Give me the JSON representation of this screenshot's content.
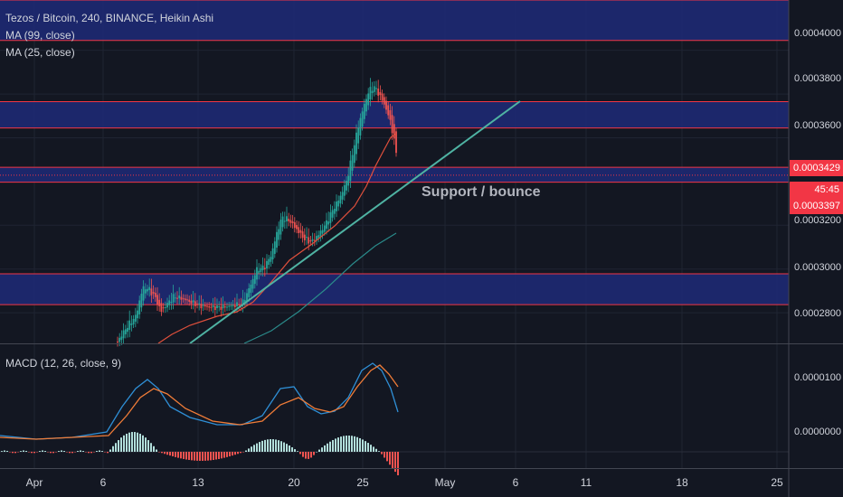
{
  "legend": {
    "symbol": "Tezos / Bitcoin, 240, BINANCE, Heikin Ashi",
    "ma99": "MA (99, close)",
    "ma25": "MA (25, close)",
    "macd": "MACD (12, 26, close, 9)"
  },
  "price_axis": [
    "0.0004000",
    "0.0003800",
    "0.0003600",
    "0.0003200",
    "0.0003000",
    "0.0002800"
  ],
  "macd_axis": [
    "0.0000100",
    "0.0000000"
  ],
  "time_axis": [
    "Apr",
    "6",
    "13",
    "20",
    "25",
    "May",
    "6",
    "11",
    "18",
    "25"
  ],
  "badges": {
    "last_price": "0.0003429",
    "countdown": "45:45",
    "level": "0.0003397"
  },
  "annotation": "Support / bounce",
  "colors": {
    "background": "#131722",
    "zone_fill": "#1e2a78",
    "zone_line": "#f23645",
    "candle_up": "#26a69a",
    "candle_down": "#ef5350",
    "ma25": "#e0503c",
    "ma99": "#2a8a8a",
    "trendline": "#4fb3a3",
    "macd_line": "#2f8fd6",
    "signal_line": "#f07c38"
  },
  "chart_data": {
    "type": "candlestick",
    "pair": "XTZ/BTC",
    "timeframe": "240",
    "exchange": "BINANCE",
    "candle_style": "Heikin Ashi",
    "ylim": [
      0.000266,
      0.000423
    ],
    "last_price": 0.0003429,
    "zones": [
      {
        "from": 0.0004045,
        "to": 0.000423
      },
      {
        "from": 0.0003645,
        "to": 0.0003765
      },
      {
        "from": 0.0003397,
        "to": 0.0003465
      },
      {
        "from": 0.0002837,
        "to": 0.0002978
      }
    ],
    "macd_ylim": [
      -2.5e-06,
      1.65e-05
    ]
  }
}
